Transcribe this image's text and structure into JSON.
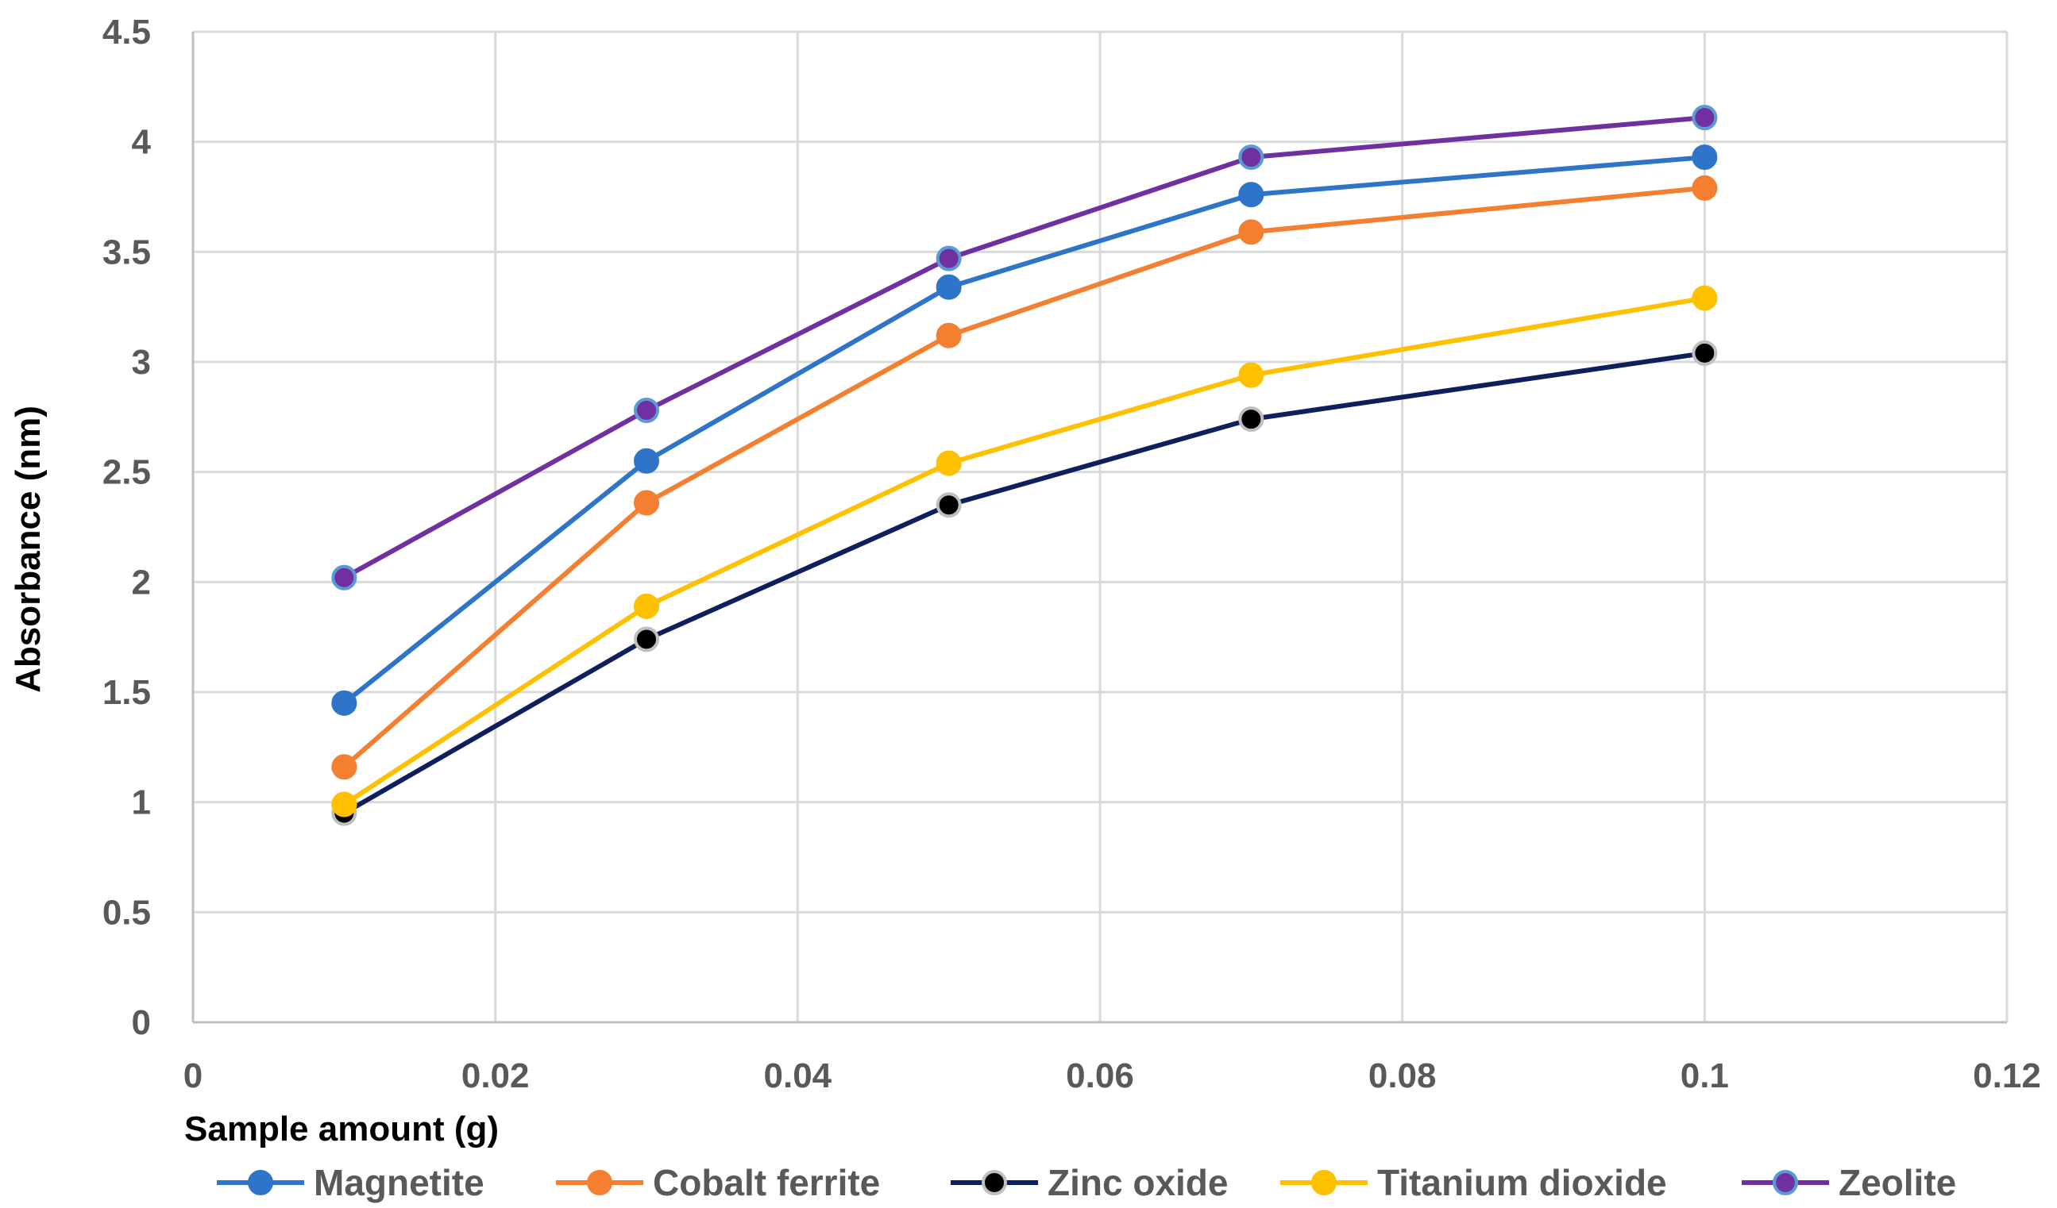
{
  "chart_data": {
    "type": "line",
    "title": "",
    "xlabel": "Sample amount (g)",
    "ylabel": "Absorbance (nm)",
    "xlim": [
      0,
      0.12
    ],
    "ylim": [
      0,
      4.5
    ],
    "x_ticks": [
      0,
      0.02,
      0.04,
      0.06,
      0.08,
      0.1,
      0.12
    ],
    "x_tick_labels": [
      "0",
      "0.02",
      "0.04",
      "0.06",
      "0.08",
      "0.1",
      "0.12"
    ],
    "y_ticks": [
      0,
      0.5,
      1,
      1.5,
      2,
      2.5,
      3,
      3.5,
      4,
      4.5
    ],
    "y_tick_labels": [
      "0",
      "0.5",
      "1",
      "1.5",
      "2",
      "2.5",
      "3",
      "3.5",
      "4",
      "4.5"
    ],
    "grid": true,
    "legend_position": "bottom",
    "x": [
      0.01,
      0.03,
      0.05,
      0.07,
      0.1
    ],
    "series": [
      {
        "name": "Magnetite",
        "color": "#2E75C9",
        "marker_fill": "#2E75C9",
        "marker_edge": "#2E75C9",
        "values": [
          1.45,
          2.55,
          3.34,
          3.76,
          3.93
        ]
      },
      {
        "name": "Cobalt ferrite",
        "color": "#F47F30",
        "marker_fill": "#F47F30",
        "marker_edge": "#F47F30",
        "values": [
          1.16,
          2.36,
          3.12,
          3.59,
          3.79
        ]
      },
      {
        "name": "Zinc oxide",
        "color": "#0D1F5C",
        "marker_fill": "#000000",
        "marker_edge": "#BFBFBF",
        "values": [
          0.95,
          1.74,
          2.35,
          2.74,
          3.04
        ]
      },
      {
        "name": "Titanium dioxide",
        "color": "#FFC000",
        "marker_fill": "#FFC000",
        "marker_edge": "#FFC000",
        "values": [
          0.99,
          1.89,
          2.54,
          2.94,
          3.29
        ]
      },
      {
        "name": "Zeolite",
        "color": "#7030A0",
        "marker_fill": "#7030A0",
        "marker_edge": "#5B9BD5",
        "values": [
          2.02,
          2.78,
          3.47,
          3.93,
          4.11
        ]
      }
    ]
  }
}
